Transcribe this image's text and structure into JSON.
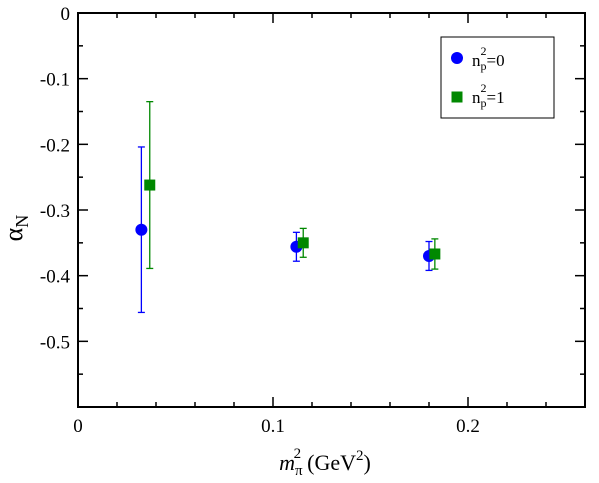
{
  "chart_data": {
    "type": "scatter",
    "xlim": [
      0,
      0.26
    ],
    "ylim": [
      -0.6,
      0
    ],
    "x_ticks": [
      0,
      0.1,
      0.2
    ],
    "x_tick_labels": [
      "0",
      "0.1",
      "0.2"
    ],
    "y_ticks": [
      0,
      -0.1,
      -0.2,
      -0.3,
      -0.4,
      -0.5
    ],
    "y_tick_labels": [
      "0",
      "-0.1",
      "-0.2",
      "-0.3",
      "-0.4",
      "-0.5"
    ],
    "xlabel": {
      "base": "m",
      "sub": "π",
      "sup": "2",
      "unit": "(GeV",
      "unit_sup": "2",
      "unit_close": ")"
    },
    "ylabel": {
      "base": "α",
      "sub": "N"
    },
    "grid": false,
    "legend_position": "top-right",
    "series": [
      {
        "name": {
          "base": "n",
          "sub": "p",
          "sup": "2",
          "rest": "=0"
        },
        "marker": "circle",
        "color": "#0000ff",
        "points": [
          {
            "x": 0.0325,
            "y": -0.33,
            "err": 0.126
          },
          {
            "x": 0.112,
            "y": -0.356,
            "err": 0.022
          },
          {
            "x": 0.18,
            "y": -0.37,
            "err": 0.022
          }
        ]
      },
      {
        "name": {
          "base": "n",
          "sub": "p",
          "sup": "2",
          "rest": "=1"
        },
        "marker": "square",
        "color": "#008800",
        "points": [
          {
            "x": 0.0368,
            "y": -0.262,
            "err": 0.127
          },
          {
            "x": 0.1155,
            "y": -0.35,
            "err": 0.022
          },
          {
            "x": 0.183,
            "y": -0.367,
            "err": 0.023
          }
        ]
      }
    ]
  }
}
